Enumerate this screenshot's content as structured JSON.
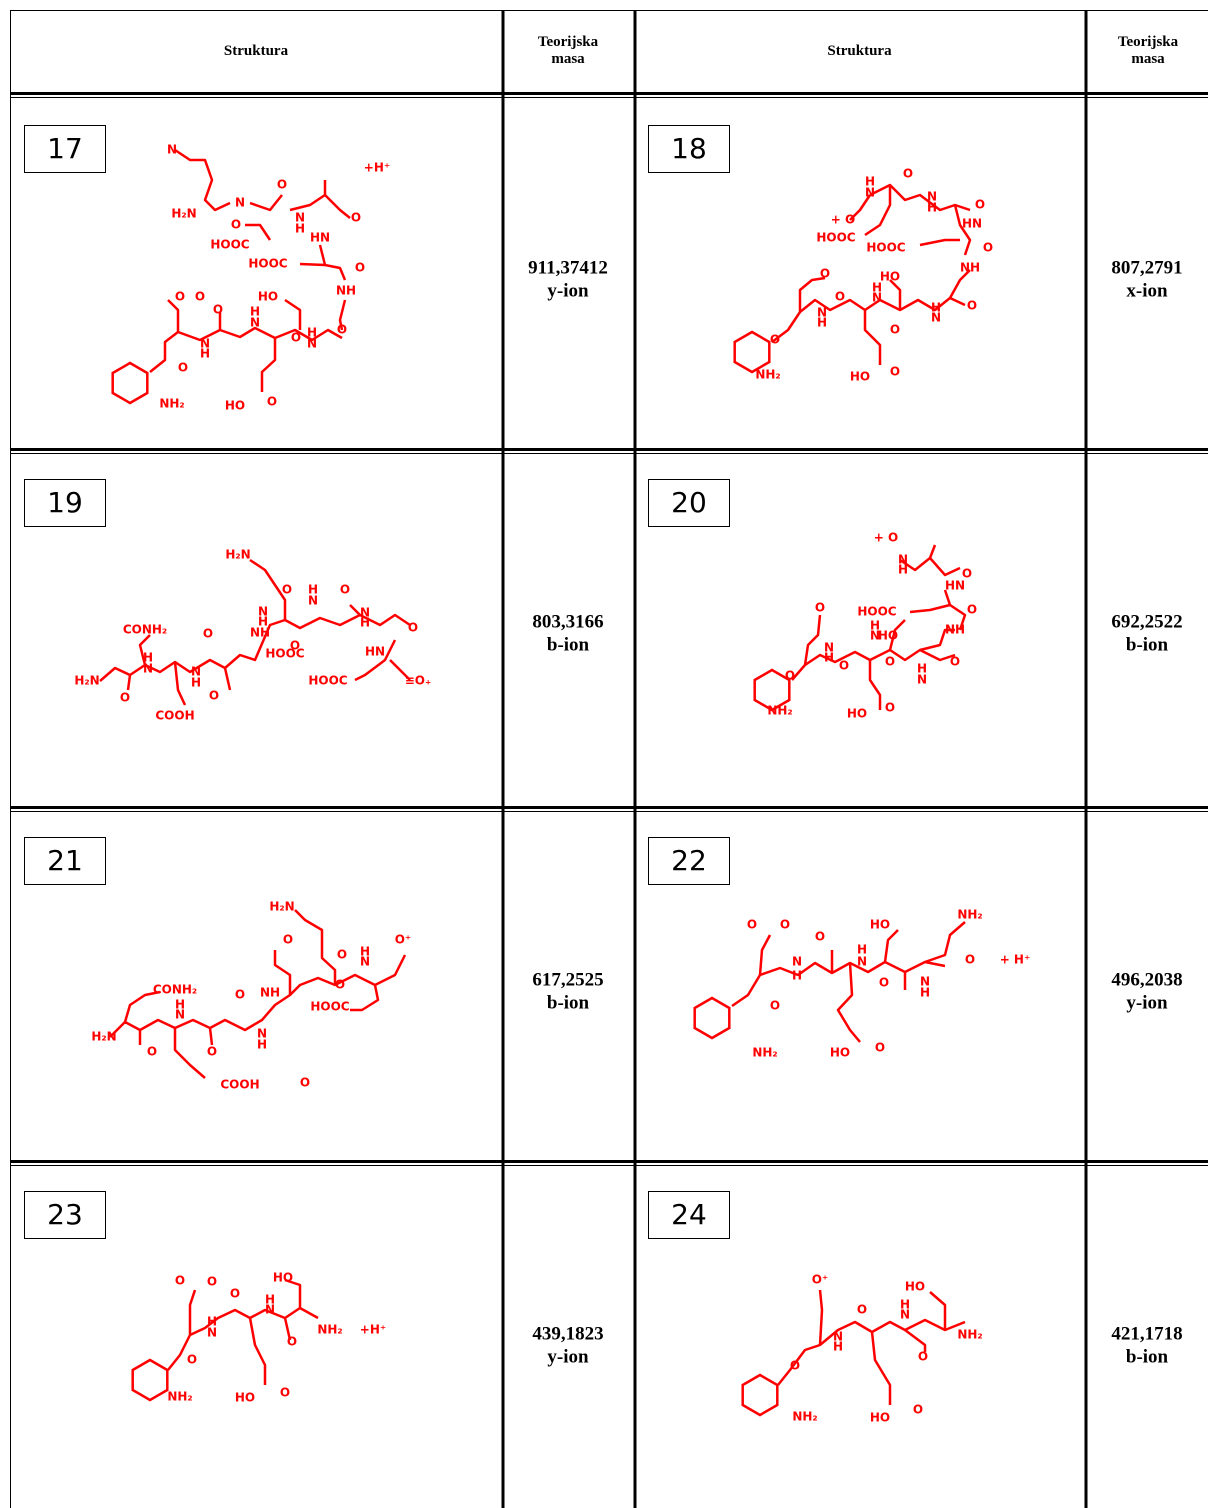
{
  "table": {
    "headers": [
      "Struktura",
      "Teorijska masa",
      "Struktura",
      "Teorijska masa"
    ],
    "rows": [
      [
        {
          "number": "17",
          "labels": [
            "N",
            "+H⁺",
            "H₂N",
            "N",
            "O",
            "O",
            "HOOC",
            "N",
            "H",
            "O",
            "HN",
            "HOOC",
            "O",
            "NH",
            "O",
            "HO",
            "O",
            "O",
            "N",
            "H",
            "N",
            "H",
            "O",
            "O",
            "N",
            "H",
            "O",
            "NH₂",
            "HO",
            "O"
          ],
          "mass": "911,37412",
          "ion": "y-ion"
        },
        {
          "number": "18",
          "labels": [
            "H",
            "N",
            "O",
            "N",
            "H",
            "O",
            "+ O",
            "HN",
            "HOOC",
            "HOOC",
            "O",
            "NH",
            "O",
            "HO",
            "O",
            "N",
            "H",
            "N",
            "H",
            "O",
            "N",
            "H",
            "O",
            "O",
            "NH₂",
            "HO",
            "O"
          ],
          "mass": "807,2791",
          "ion": "x-ion"
        }
      ],
      [
        {
          "number": "19",
          "labels": [
            "H₂N",
            "H",
            "N",
            "O",
            "NH",
            "O",
            "O",
            "N",
            "H",
            "N",
            "H",
            "O",
            "CONH₂",
            "O",
            "H",
            "N",
            "HN",
            "HOOC",
            "H₂N",
            "O",
            "N",
            "H",
            "O",
            "HOOC",
            "≡O₊",
            "COOH"
          ],
          "mass": "803,3166",
          "ion": "b-ion"
        },
        {
          "number": "20",
          "labels": [
            "+ O",
            "N",
            "H",
            "HN",
            "O",
            "HOOC",
            "O",
            "NH",
            "O",
            "HO",
            "N",
            "H",
            "N",
            "H",
            "O",
            "O",
            "O",
            "N",
            "H",
            "O",
            "NH₂",
            "HO",
            "O"
          ],
          "mass": "692,2522",
          "ion": "b-ion"
        }
      ],
      [
        {
          "number": "21",
          "labels": [
            "H₂N",
            "O",
            "O⁺",
            "O",
            "N",
            "H",
            "O",
            "CONH₂",
            "O",
            "NH",
            "N",
            "H",
            "HOOC",
            "N",
            "H",
            "H₂N",
            "O",
            "O",
            "COOH",
            "O"
          ],
          "mass": "617,2525",
          "ion": "b-ion"
        },
        {
          "number": "22",
          "labels": [
            "O",
            "O",
            "O",
            "HO",
            "NH₂",
            "N",
            "H",
            "O",
            "N",
            "H",
            "O",
            "N",
            "H",
            "+ H⁺",
            "O",
            "NH₂",
            "HO",
            "O"
          ],
          "mass": "496,2038",
          "ion": "y-ion"
        }
      ],
      [
        {
          "number": "23",
          "labels": [
            "O",
            "O",
            "HO",
            "O",
            "N",
            "H",
            "N",
            "H",
            "NH₂",
            "+H⁺",
            "O",
            "O",
            "NH₂",
            "HO",
            "O"
          ],
          "mass": "439,1823",
          "ion": "y-ion"
        },
        {
          "number": "24",
          "labels": [
            "O⁺",
            "HO",
            "O",
            "N",
            "H",
            "N",
            "H",
            "NH₂",
            "O",
            "O",
            "NH₂",
            "HO",
            "O"
          ],
          "mass": "421,1718",
          "ion": "b-ion"
        }
      ]
    ]
  }
}
